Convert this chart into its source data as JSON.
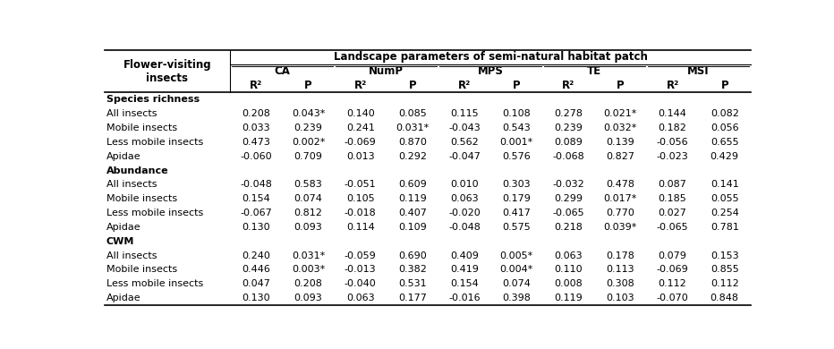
{
  "title": "Landscape parameters of semi-natural habitat patch",
  "col_header_groups": [
    "CA",
    "NumP",
    "MPS",
    "TE",
    "MSI"
  ],
  "col_subheaders": [
    "R²",
    "P",
    "R²",
    "P",
    "R²",
    "P",
    "R²",
    "P",
    "R²",
    "P"
  ],
  "row_header": "Flower-visiting\ninsects",
  "sections": [
    {
      "section_label": "Species richness",
      "rows": [
        {
          "label": "All insects",
          "values": [
            "0.208",
            "0.043*",
            "0.140",
            "0.085",
            "0.115",
            "0.108",
            "0.278",
            "0.021*",
            "0.144",
            "0.082"
          ]
        },
        {
          "label": "Mobile insects",
          "values": [
            "0.033",
            "0.239",
            "0.241",
            "0.031*",
            "-0.043",
            "0.543",
            "0.239",
            "0.032*",
            "0.182",
            "0.056"
          ]
        },
        {
          "label": "Less mobile insects",
          "values": [
            "0.473",
            "0.002*",
            "-0.069",
            "0.870",
            "0.562",
            "0.001*",
            "0.089",
            "0.139",
            "-0.056",
            "0.655"
          ]
        },
        {
          "label": "Apidae",
          "values": [
            "-0.060",
            "0.709",
            "0.013",
            "0.292",
            "-0.047",
            "0.576",
            "-0.068",
            "0.827",
            "-0.023",
            "0.429"
          ]
        }
      ]
    },
    {
      "section_label": "Abundance",
      "rows": [
        {
          "label": "All insects",
          "values": [
            "-0.048",
            "0.583",
            "-0.051",
            "0.609",
            "0.010",
            "0.303",
            "-0.032",
            "0.478",
            "0.087",
            "0.141"
          ]
        },
        {
          "label": "Mobile insects",
          "values": [
            "0.154",
            "0.074",
            "0.105",
            "0.119",
            "0.063",
            "0.179",
            "0.299",
            "0.017*",
            "0.185",
            "0.055"
          ]
        },
        {
          "label": "Less mobile insects",
          "values": [
            "-0.067",
            "0.812",
            "-0.018",
            "0.407",
            "-0.020",
            "0.417",
            "-0.065",
            "0.770",
            "0.027",
            "0.254"
          ]
        },
        {
          "label": "Apidae",
          "values": [
            "0.130",
            "0.093",
            "0.114",
            "0.109",
            "-0.048",
            "0.575",
            "0.218",
            "0.039*",
            "-0.065",
            "0.781"
          ]
        }
      ]
    },
    {
      "section_label": "CWM",
      "rows": [
        {
          "label": "All insects",
          "values": [
            "0.240",
            "0.031*",
            "-0.059",
            "0.690",
            "0.409",
            "0.005*",
            "0.063",
            "0.178",
            "0.079",
            "0.153"
          ]
        },
        {
          "label": "Mobile insects",
          "values": [
            "0.446",
            "0.003*",
            "-0.013",
            "0.382",
            "0.419",
            "0.004*",
            "0.110",
            "0.113",
            "-0.069",
            "0.855"
          ]
        },
        {
          "label": "Less mobile insects",
          "values": [
            "0.047",
            "0.208",
            "-0.040",
            "0.531",
            "0.154",
            "0.074",
            "0.008",
            "0.308",
            "0.112",
            "0.112"
          ]
        },
        {
          "label": "Apidae",
          "values": [
            "0.130",
            "0.093",
            "0.063",
            "0.177",
            "-0.016",
            "0.398",
            "0.119",
            "0.103",
            "-0.070",
            "0.848"
          ]
        }
      ]
    }
  ]
}
